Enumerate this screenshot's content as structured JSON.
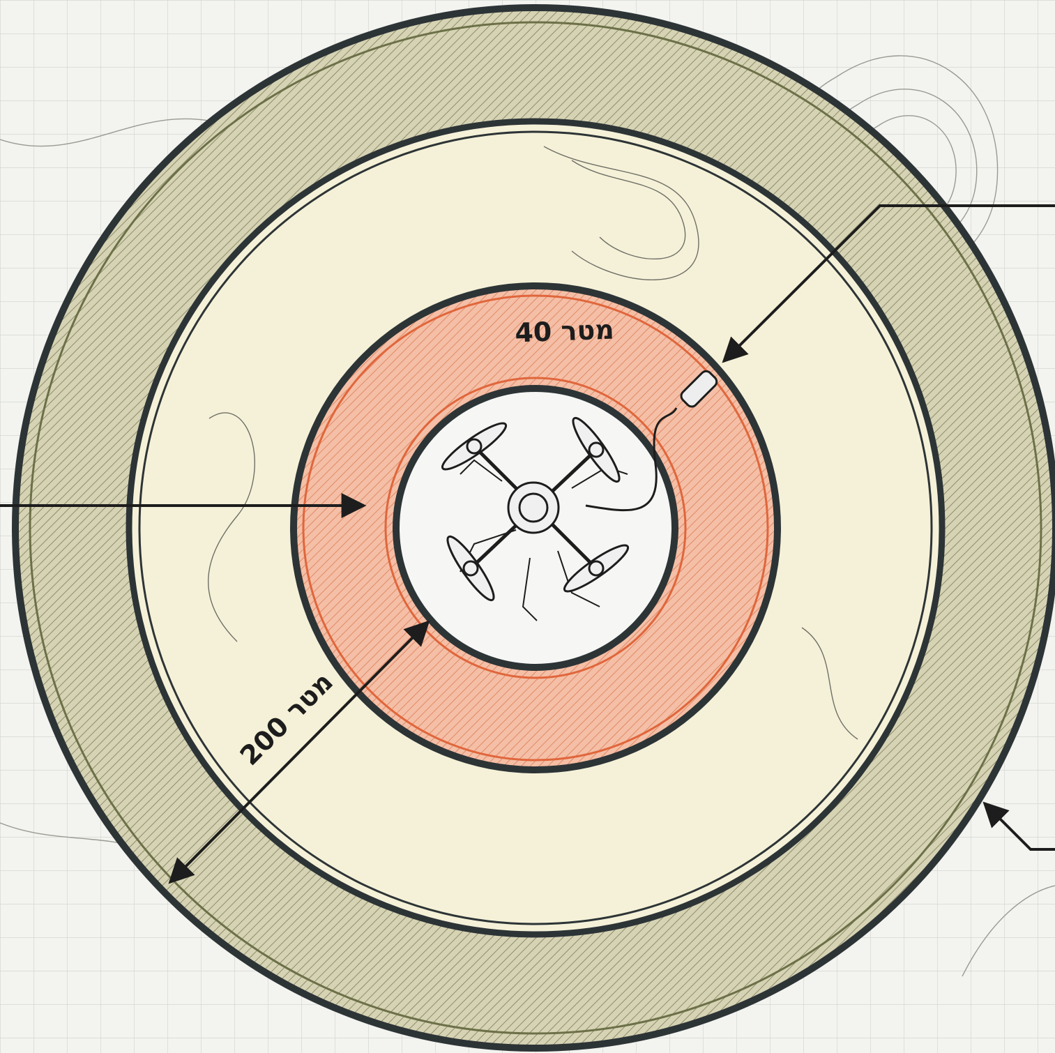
{
  "labels": {
    "inner_radius": "40 מטר",
    "outer_radius": "200 מטר"
  }
}
